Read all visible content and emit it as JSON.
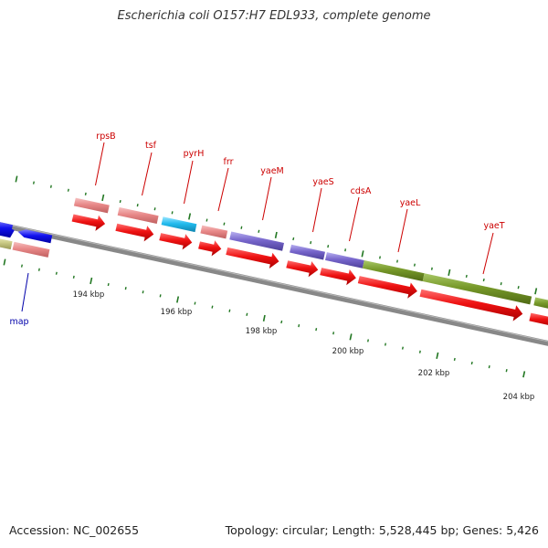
{
  "title": "Escherichia coli O157:H7 EDL933, complete genome",
  "footer": {
    "accession": "Accession: NC_002655",
    "summary": "Topology: circular; Length: 5,528,445 bp; Genes: 5,426"
  },
  "gene_labels": [
    "rpsB",
    "tsf",
    "pyrH",
    "frr",
    "yaeM",
    "yaeS",
    "cdsA",
    "yaeL",
    "yaeT",
    "map"
  ],
  "position_labels": [
    "194 kbp",
    "196 kbp",
    "198 kbp",
    "200 kbp",
    "202 kbp",
    "204 kbp"
  ],
  "colors": {
    "red": "#ee1111",
    "pink": "#e88888",
    "cyan": "#22bbee",
    "purple": "#7766cc",
    "olive": "#77992a",
    "khaki": "#cccc88",
    "blue": "#1111ee",
    "tick_green": "#227722",
    "backbone": "#888888",
    "label_red": "#cc0000",
    "label_blue": "#0000aa"
  }
}
